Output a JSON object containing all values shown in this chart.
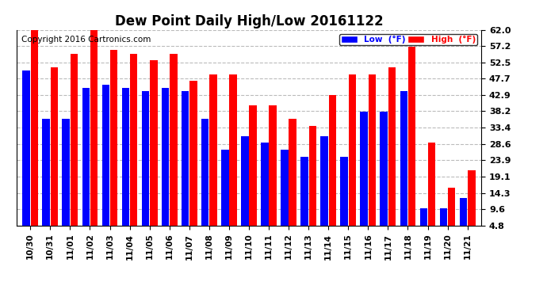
{
  "title": "Dew Point Daily High/Low 20161122",
  "copyright": "Copyright 2016 Cartronics.com",
  "categories": [
    "10/30",
    "10/31",
    "11/01",
    "11/02",
    "11/03",
    "11/04",
    "11/05",
    "11/06",
    "11/07",
    "11/08",
    "11/09",
    "11/10",
    "11/11",
    "11/12",
    "11/13",
    "11/14",
    "11/15",
    "11/16",
    "11/17",
    "11/18",
    "11/19",
    "11/20",
    "11/21"
  ],
  "low": [
    50,
    36,
    36,
    45,
    46,
    45,
    44,
    45,
    44,
    36,
    27,
    31,
    29,
    27,
    25,
    31,
    25,
    38,
    38,
    44,
    10,
    10,
    13
  ],
  "high": [
    62,
    51,
    55,
    62,
    56,
    55,
    53,
    55,
    47,
    49,
    49,
    40,
    40,
    36,
    34,
    43,
    49,
    49,
    51,
    57,
    29,
    16,
    21
  ],
  "yticks": [
    4.8,
    9.6,
    14.3,
    19.1,
    23.9,
    28.6,
    33.4,
    38.2,
    42.9,
    47.7,
    52.5,
    57.2,
    62.0
  ],
  "ymin": 4.8,
  "ymax": 62.0,
  "bar_color_low": "#0000ff",
  "bar_color_high": "#ff0000",
  "background_color": "#ffffff",
  "plot_bg_color": "#ffffff",
  "grid_color": "#bbbbbb",
  "legend_low_label": "Low  (°F)",
  "legend_high_label": "High  (°F)",
  "title_fontsize": 12,
  "copyright_fontsize": 7.5
}
